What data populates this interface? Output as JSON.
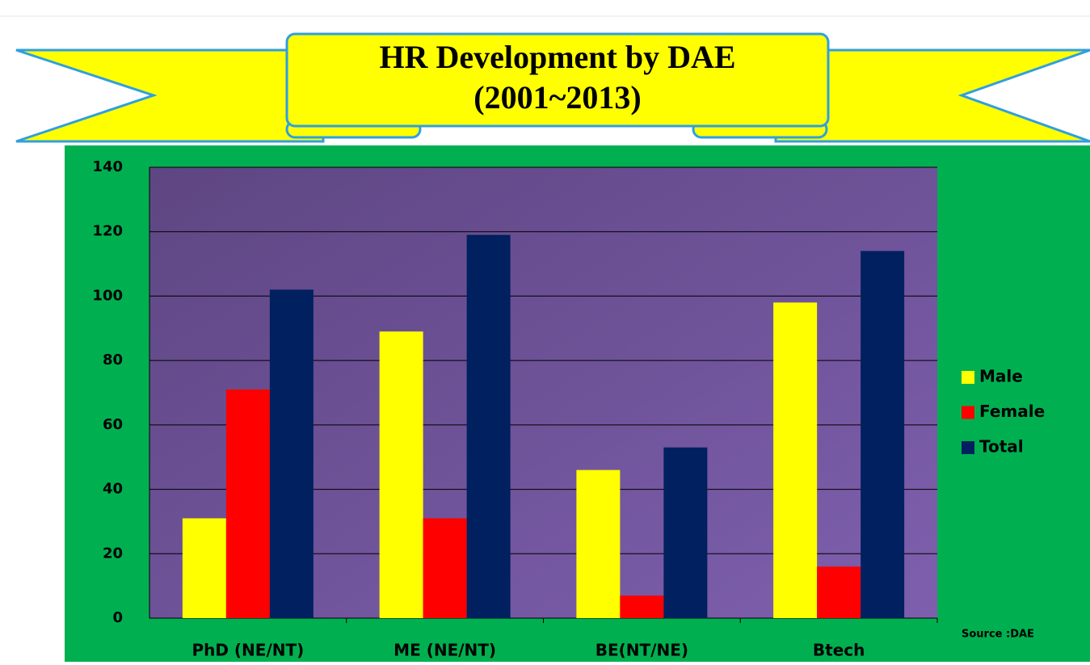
{
  "chart_data": {
    "type": "bar",
    "title": "HR Development by DAE",
    "subtitle": "(2001~2013)",
    "categories": [
      "PhD (NE/NT)",
      "ME (NE/NT)",
      "BE(NT/NE)",
      "Btech"
    ],
    "series": [
      {
        "name": "Male",
        "color": "#ffff00",
        "values": [
          31,
          89,
          46,
          98
        ]
      },
      {
        "name": "Female",
        "color": "#ff0000",
        "values": [
          71,
          31,
          7,
          16
        ]
      },
      {
        "name": "Total",
        "color": "#002060",
        "values": [
          102,
          119,
          53,
          114
        ]
      }
    ],
    "ylim": [
      0,
      140
    ],
    "yticks": [
      0,
      20,
      40,
      60,
      80,
      100,
      120,
      140
    ],
    "grid": true,
    "legend": "right",
    "annotation": "Source :DAE"
  }
}
